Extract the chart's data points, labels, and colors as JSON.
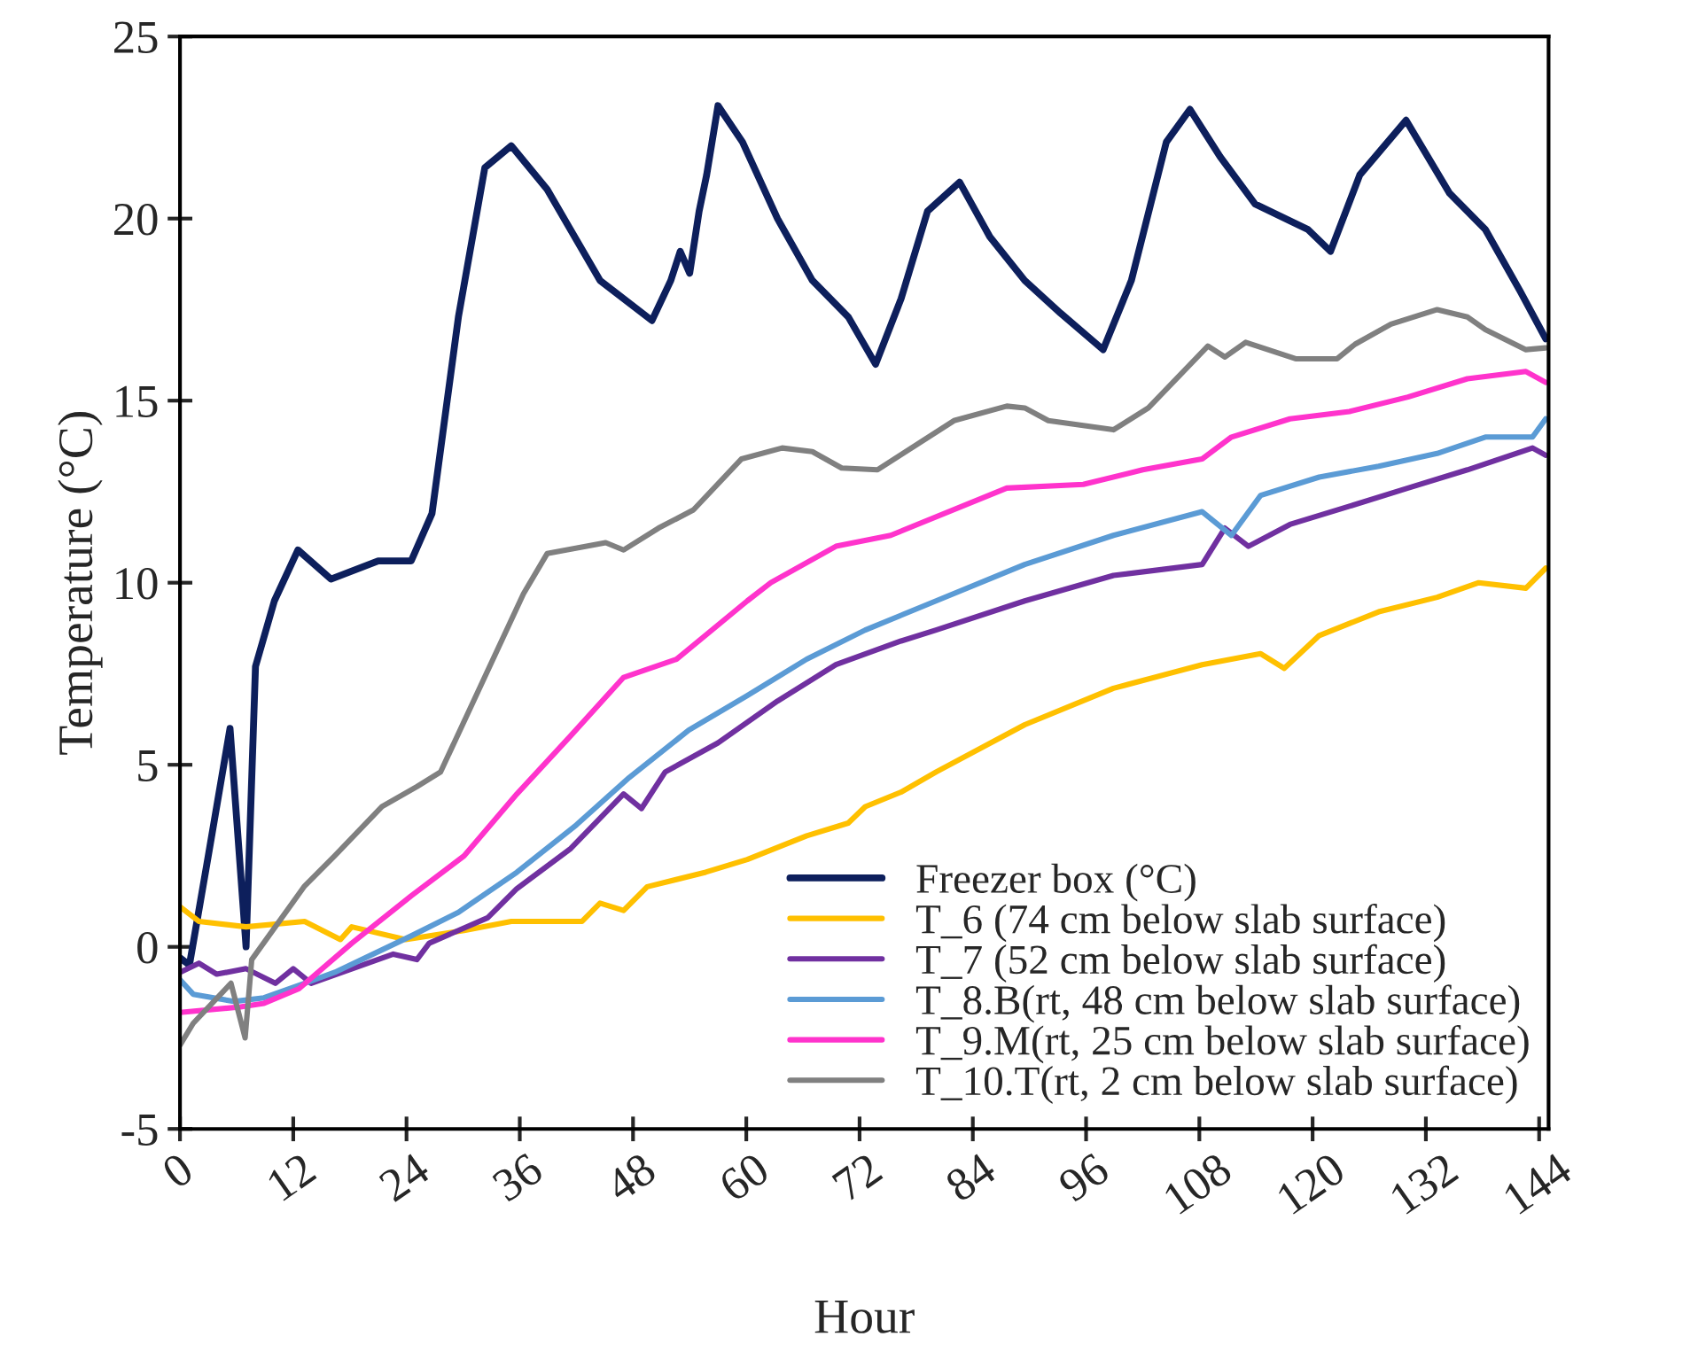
{
  "chart_data": {
    "type": "line",
    "xlabel": "Hour",
    "ylabel": "Temperature (°C)",
    "xlim": [
      0,
      145
    ],
    "ylim": [
      -5,
      25
    ],
    "xticks": [
      0,
      12,
      24,
      36,
      48,
      60,
      72,
      84,
      96,
      108,
      120,
      132,
      144
    ],
    "yticks": [
      -5,
      0,
      5,
      10,
      15,
      20,
      25
    ],
    "grid": false,
    "legend": "bottom right",
    "marker": "none",
    "line_style": "solid",
    "series": [
      {
        "name": "Freezer box (°C)",
        "color": "#0d1f5c",
        "x": [
          0,
          1,
          3,
          5.3,
          7,
          8,
          10,
          12.5,
          16,
          21,
          24.5,
          26.7,
          29.5,
          32.3,
          35.1,
          38.9,
          44.5,
          50,
          52,
          53,
          54,
          55,
          55.8,
          57,
          59.6,
          63.3,
          67,
          70.8,
          73.7,
          76.4,
          79.2,
          82.6,
          85.8,
          89.5,
          93.3,
          97.8,
          100.8,
          104.5,
          107,
          110.2,
          113.9,
          119.5,
          121.9,
          125,
          129.9,
          134.5,
          138.3,
          142,
          144.7
        ],
        "values": [
          -0.3,
          -0.5,
          2.5,
          6.0,
          0.0,
          7.7,
          9.5,
          10.9,
          10.1,
          10.6,
          10.6,
          11.9,
          17.3,
          21.4,
          22.0,
          20.8,
          18.3,
          17.2,
          18.3,
          19.1,
          18.5,
          20.2,
          21.2,
          23.1,
          22.1,
          20.0,
          18.3,
          17.3,
          16.0,
          17.8,
          20.2,
          21.0,
          19.5,
          18.3,
          17.4,
          16.4,
          18.3,
          22.1,
          23.0,
          21.7,
          20.4,
          19.7,
          19.1,
          21.2,
          22.7,
          20.7,
          19.7,
          18.0,
          16.7
        ]
      },
      {
        "name": "T_6 (74 cm below slab surface)",
        "color": "#ffc000",
        "x": [
          0,
          2,
          7,
          13.2,
          17,
          18.2,
          23.9,
          30.1,
          35.1,
          42.6,
          44.5,
          47,
          49.5,
          55.7,
          60.1,
          66.4,
          70.8,
          72.6,
          76.4,
          80.1,
          89.5,
          98.9,
          108.3,
          114.5,
          117,
          120.7,
          127,
          133.2,
          137.6,
          142.6,
          144.7
        ],
        "values": [
          1.1,
          0.7,
          0.55,
          0.7,
          0.2,
          0.55,
          0.2,
          0.45,
          0.7,
          0.7,
          1.2,
          1.0,
          1.65,
          2.05,
          2.4,
          3.05,
          3.4,
          3.85,
          4.25,
          4.8,
          6.1,
          7.1,
          7.75,
          8.05,
          7.65,
          8.55,
          9.2,
          9.6,
          10.0,
          9.85,
          10.4
        ]
      },
      {
        "name": "T_7 (52 cm below slab surface)",
        "color": "#7030a0",
        "x": [
          0,
          2,
          3.9,
          7,
          10.1,
          12,
          13.9,
          22.6,
          25.1,
          26.4,
          32.6,
          35.7,
          41.4,
          47,
          48.9,
          51.4,
          57,
          63.3,
          69.5,
          76.4,
          80.1,
          89.5,
          98.9,
          108.3,
          110.7,
          113.2,
          117.6,
          123.9,
          130.1,
          136.4,
          143.3,
          144.7
        ],
        "values": [
          -0.7,
          -0.45,
          -0.75,
          -0.6,
          -1.0,
          -0.6,
          -1.0,
          -0.2,
          -0.35,
          0.1,
          0.8,
          1.6,
          2.7,
          4.2,
          3.8,
          4.8,
          5.6,
          6.75,
          7.75,
          8.4,
          8.7,
          9.5,
          10.2,
          10.5,
          11.5,
          11.0,
          11.6,
          12.1,
          12.6,
          13.1,
          13.7,
          13.5
        ]
      },
      {
        "name": "T_8.B(rt, 48 cm below slab surface)",
        "color": "#5b9bd5",
        "x": [
          0,
          1.4,
          5.7,
          8.9,
          13.2,
          16.4,
          24.5,
          29.5,
          35.7,
          42,
          47.6,
          53.9,
          60.1,
          66.4,
          72.6,
          80.1,
          89.5,
          98.9,
          108.3,
          111.4,
          114.5,
          120.7,
          127,
          133.2,
          138.3,
          143.3,
          144.7
        ],
        "values": [
          -0.9,
          -1.3,
          -1.5,
          -1.4,
          -1.0,
          -0.7,
          0.3,
          0.95,
          2.05,
          3.35,
          4.65,
          5.95,
          6.9,
          7.9,
          8.7,
          9.5,
          10.5,
          11.3,
          11.95,
          11.3,
          12.4,
          12.9,
          13.2,
          13.55,
          14.0,
          14.0,
          14.5
        ]
      },
      {
        "name": "T_9.M(rt, 25 cm below slab surface)",
        "color": "#ff33cc",
        "x": [
          0,
          6.4,
          8.9,
          12.6,
          18.2,
          24.5,
          30.1,
          35.7,
          41.4,
          47,
          52.6,
          60.1,
          62.6,
          69.5,
          75.3,
          87.6,
          95.7,
          102,
          108.3,
          111.4,
          117.6,
          123.9,
          130.1,
          136.4,
          142.6,
          144.7
        ],
        "values": [
          -1.8,
          -1.65,
          -1.55,
          -1.15,
          0.1,
          1.4,
          2.5,
          4.2,
          5.8,
          7.4,
          7.9,
          9.5,
          10.0,
          11.0,
          11.3,
          12.6,
          12.7,
          13.1,
          13.4,
          14.0,
          14.5,
          14.7,
          15.1,
          15.6,
          15.8,
          15.5
        ]
      },
      {
        "name": "T_10.T(rt, 2 cm below slab surface)",
        "color": "#808080",
        "x": [
          0,
          1.4,
          5.4,
          6.9,
          7.6,
          13.2,
          16.4,
          21.4,
          25.1,
          27.6,
          32,
          36.4,
          38.9,
          45.1,
          47,
          50.7,
          54.4,
          59.5,
          63.8,
          67,
          70.1,
          73.9,
          82,
          87.6,
          89.5,
          92,
          98.9,
          102.6,
          108.9,
          110.7,
          112.9,
          118.2,
          122.6,
          124.5,
          128.3,
          133.2,
          136.4,
          138.3,
          142.6,
          144.7
        ],
        "values": [
          -2.7,
          -2.1,
          -1.0,
          -2.5,
          -0.35,
          1.67,
          2.5,
          3.85,
          4.4,
          4.8,
          7.25,
          9.7,
          10.8,
          11.1,
          10.9,
          11.5,
          12.0,
          13.4,
          13.7,
          13.6,
          13.15,
          13.1,
          14.45,
          14.85,
          14.8,
          14.45,
          14.2,
          14.8,
          16.5,
          16.2,
          16.6,
          16.15,
          16.15,
          16.55,
          17.1,
          17.5,
          17.3,
          16.95,
          16.4,
          16.45
        ]
      }
    ]
  }
}
